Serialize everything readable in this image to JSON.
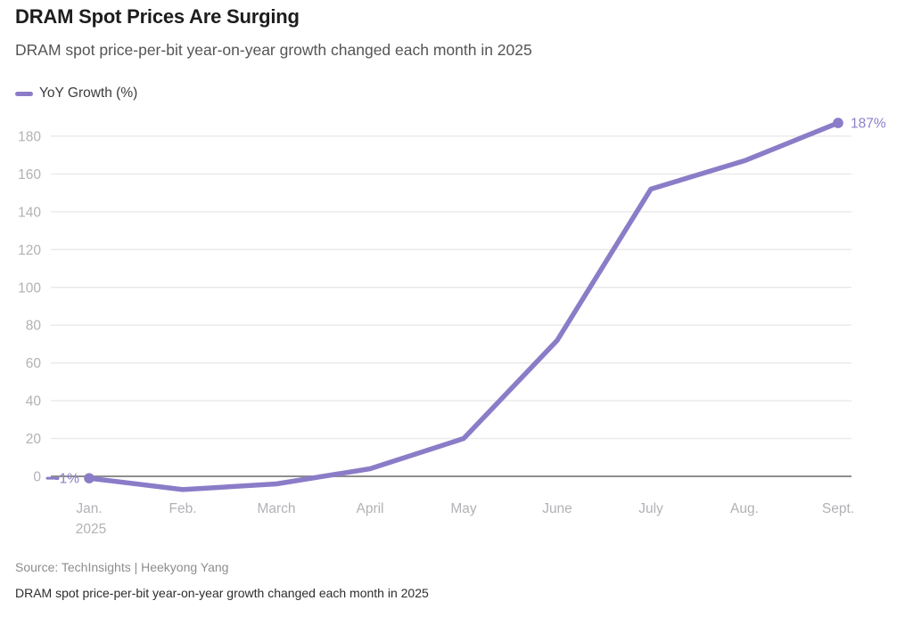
{
  "header": {
    "title": "DRAM Spot Prices Are Surging",
    "subtitle": "DRAM spot price-per-bit year-on-year growth changed each month in 2025"
  },
  "legend": {
    "label": "YoY Growth (%)"
  },
  "footer": {
    "source": "Source: TechInsights | Heekyong Yang",
    "caption": "DRAM spot price-per-bit year-on-year growth changed each month in 2025"
  },
  "colors": {
    "line": "#8b7cc8",
    "annotation_text": "#8d7ec9",
    "gridline": "#e9e9e9",
    "zero_line": "#8e8e8e",
    "axis_label": "#b2b2b6",
    "title_text": "#1d1d1d",
    "subtitle_text": "#555555"
  },
  "chart_data": {
    "type": "line",
    "title": "DRAM Spot Prices Are Surging",
    "subtitle": "DRAM spot price-per-bit year-on-year growth changed each month in 2025",
    "categories": [
      "Jan.",
      "Feb.",
      "March",
      "April",
      "May",
      "June",
      "July",
      "Aug.",
      "Sept."
    ],
    "x_axis_sub_label": "2025",
    "series": [
      {
        "name": "YoY Growth (%)",
        "color": "#8b7cc8",
        "values": [
          -1,
          -7,
          -4,
          4,
          20,
          72,
          152,
          167,
          187
        ]
      }
    ],
    "yticks": [
      0,
      20,
      40,
      60,
      80,
      100,
      120,
      140,
      160,
      180
    ],
    "ylim": [
      -12,
      192
    ],
    "xlabel": "",
    "ylabel": "",
    "grid": "horizontal",
    "legend_position": "top-left",
    "annotations": [
      {
        "index": 0,
        "label": "-1%",
        "side": "left",
        "leading_dash": true
      },
      {
        "index": 8,
        "label": "187%",
        "side": "right",
        "leading_dash": false
      }
    ]
  }
}
